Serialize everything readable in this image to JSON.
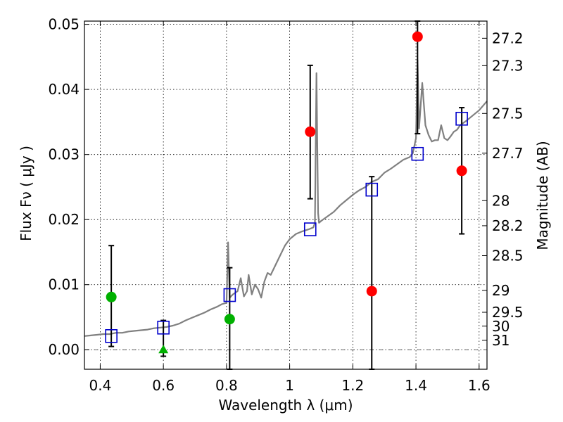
{
  "chart_data": {
    "type": "scatter",
    "xlabel": "Wavelength  λ (μm)",
    "ylabel": "Flux  Fν  ( μJy )",
    "y2label": "Magnitude (AB)",
    "xlim": [
      0.35,
      1.625
    ],
    "ylim": [
      -0.003,
      0.0505
    ],
    "grid": true,
    "x_ticks": [
      {
        "value": 0.4,
        "label": "0.4"
      },
      {
        "value": 0.6,
        "label": "0.6"
      },
      {
        "value": 0.8,
        "label": "0.8"
      },
      {
        "value": 1.0,
        "label": "1"
      },
      {
        "value": 1.2,
        "label": "1.2"
      },
      {
        "value": 1.4,
        "label": "1.4"
      },
      {
        "value": 1.6,
        "label": "1.6"
      }
    ],
    "y_ticks": [
      {
        "value": 0.0,
        "label": "0.00"
      },
      {
        "value": 0.01,
        "label": "0.01"
      },
      {
        "value": 0.02,
        "label": "0.02"
      },
      {
        "value": 0.03,
        "label": "0.03"
      },
      {
        "value": 0.04,
        "label": "0.04"
      },
      {
        "value": 0.05,
        "label": "0.05"
      }
    ],
    "mag_ticks": [
      {
        "mag": 27.2,
        "label": "27.2"
      },
      {
        "mag": 27.3,
        "label": "27.3"
      },
      {
        "mag": 27.5,
        "label": "27.5"
      },
      {
        "mag": 27.7,
        "label": "27.7"
      },
      {
        "mag": 28.0,
        "label": "28"
      },
      {
        "mag": 28.2,
        "label": "28.2"
      },
      {
        "mag": 28.5,
        "label": "28.5"
      },
      {
        "mag": 29.0,
        "label": "29"
      },
      {
        "mag": 29.5,
        "label": "29.5"
      },
      {
        "mag": 30.0,
        "label": "30"
      },
      {
        "mag": 31.0,
        "label": "31"
      }
    ],
    "series": [
      {
        "style": "line",
        "color": "#808080",
        "points": [
          [
            0.35,
            0.0021
          ],
          [
            0.37,
            0.0022
          ],
          [
            0.39,
            0.0023
          ],
          [
            0.41,
            0.0024
          ],
          [
            0.43,
            0.0024
          ],
          [
            0.45,
            0.0026
          ],
          [
            0.47,
            0.0026
          ],
          [
            0.49,
            0.0028
          ],
          [
            0.51,
            0.0029
          ],
          [
            0.53,
            0.003
          ],
          [
            0.55,
            0.0031
          ],
          [
            0.57,
            0.0033
          ],
          [
            0.59,
            0.0034
          ],
          [
            0.61,
            0.0035
          ],
          [
            0.63,
            0.0037
          ],
          [
            0.65,
            0.004
          ],
          [
            0.67,
            0.0045
          ],
          [
            0.69,
            0.0049
          ],
          [
            0.71,
            0.0053
          ],
          [
            0.73,
            0.0057
          ],
          [
            0.75,
            0.0062
          ],
          [
            0.77,
            0.0066
          ],
          [
            0.785,
            0.007
          ],
          [
            0.8,
            0.0072
          ],
          [
            0.805,
            0.0165
          ],
          [
            0.81,
            0.008
          ],
          [
            0.82,
            0.0085
          ],
          [
            0.835,
            0.009
          ],
          [
            0.845,
            0.011
          ],
          [
            0.855,
            0.0082
          ],
          [
            0.865,
            0.009
          ],
          [
            0.87,
            0.0115
          ],
          [
            0.88,
            0.0085
          ],
          [
            0.89,
            0.01
          ],
          [
            0.9,
            0.0093
          ],
          [
            0.91,
            0.008
          ],
          [
            0.92,
            0.0105
          ],
          [
            0.93,
            0.0118
          ],
          [
            0.94,
            0.0115
          ],
          [
            0.955,
            0.013
          ],
          [
            0.97,
            0.0145
          ],
          [
            0.985,
            0.016
          ],
          [
            1.0,
            0.017
          ],
          [
            1.02,
            0.0178
          ],
          [
            1.04,
            0.0182
          ],
          [
            1.06,
            0.0185
          ],
          [
            1.075,
            0.0188
          ],
          [
            1.08,
            0.0195
          ],
          [
            1.085,
            0.0425
          ],
          [
            1.09,
            0.021
          ],
          [
            1.093,
            0.0195
          ],
          [
            1.1,
            0.0198
          ],
          [
            1.12,
            0.0205
          ],
          [
            1.14,
            0.0212
          ],
          [
            1.16,
            0.0222
          ],
          [
            1.18,
            0.023
          ],
          [
            1.2,
            0.0238
          ],
          [
            1.22,
            0.0245
          ],
          [
            1.24,
            0.025
          ],
          [
            1.26,
            0.0258
          ],
          [
            1.28,
            0.0262
          ],
          [
            1.3,
            0.0272
          ],
          [
            1.32,
            0.0278
          ],
          [
            1.34,
            0.0285
          ],
          [
            1.36,
            0.0292
          ],
          [
            1.38,
            0.0296
          ],
          [
            1.39,
            0.0302
          ],
          [
            1.4,
            0.0325
          ],
          [
            1.405,
            0.0445
          ],
          [
            1.41,
            0.034
          ],
          [
            1.42,
            0.041
          ],
          [
            1.43,
            0.0345
          ],
          [
            1.44,
            0.033
          ],
          [
            1.45,
            0.032
          ],
          [
            1.46,
            0.0322
          ],
          [
            1.47,
            0.0322
          ],
          [
            1.48,
            0.0345
          ],
          [
            1.49,
            0.0325
          ],
          [
            1.5,
            0.0322
          ],
          [
            1.51,
            0.0328
          ],
          [
            1.52,
            0.0335
          ],
          [
            1.53,
            0.0338
          ],
          [
            1.54,
            0.0345
          ],
          [
            1.56,
            0.0352
          ],
          [
            1.58,
            0.036
          ],
          [
            1.6,
            0.0368
          ],
          [
            1.625,
            0.0382
          ]
        ]
      },
      {
        "style": "marker",
        "marker": "square",
        "color": "#0000cc",
        "points": [
          [
            0.435,
            0.0021
          ],
          [
            0.6,
            0.0034
          ],
          [
            0.81,
            0.0084
          ],
          [
            1.065,
            0.0185
          ],
          [
            1.26,
            0.0246
          ],
          [
            1.405,
            0.0301
          ],
          [
            1.545,
            0.0355
          ]
        ]
      },
      {
        "style": "marker",
        "marker": "circle",
        "color": "#00b000",
        "points": [
          [
            0.435,
            0.0081
          ],
          [
            0.81,
            0.0047
          ]
        ]
      },
      {
        "style": "marker",
        "marker": "triangle",
        "color": "#00b000",
        "points": [
          [
            0.6,
            0.0
          ]
        ]
      },
      {
        "style": "marker",
        "marker": "circle",
        "color": "#ff0000",
        "points": [
          [
            1.065,
            0.0335
          ],
          [
            1.26,
            0.009
          ],
          [
            1.405,
            0.0481
          ],
          [
            1.545,
            0.0275
          ]
        ]
      }
    ],
    "error_bars": [
      {
        "x": 0.435,
        "low": 0.0005,
        "high": 0.016
      },
      {
        "x": 0.6,
        "low": -0.001,
        "high": 0.0045
      },
      {
        "x": 0.81,
        "low": -0.003,
        "high": 0.0126
      },
      {
        "x": 1.065,
        "low": 0.0232,
        "high": 0.0437
      },
      {
        "x": 1.26,
        "low": -0.003,
        "high": 0.0266
      },
      {
        "x": 1.405,
        "low": 0.0332,
        "high": 0.0505
      },
      {
        "x": 1.545,
        "low": 0.0178,
        "high": 0.0372
      }
    ],
    "reference_line": {
      "y": 0.0
    }
  }
}
